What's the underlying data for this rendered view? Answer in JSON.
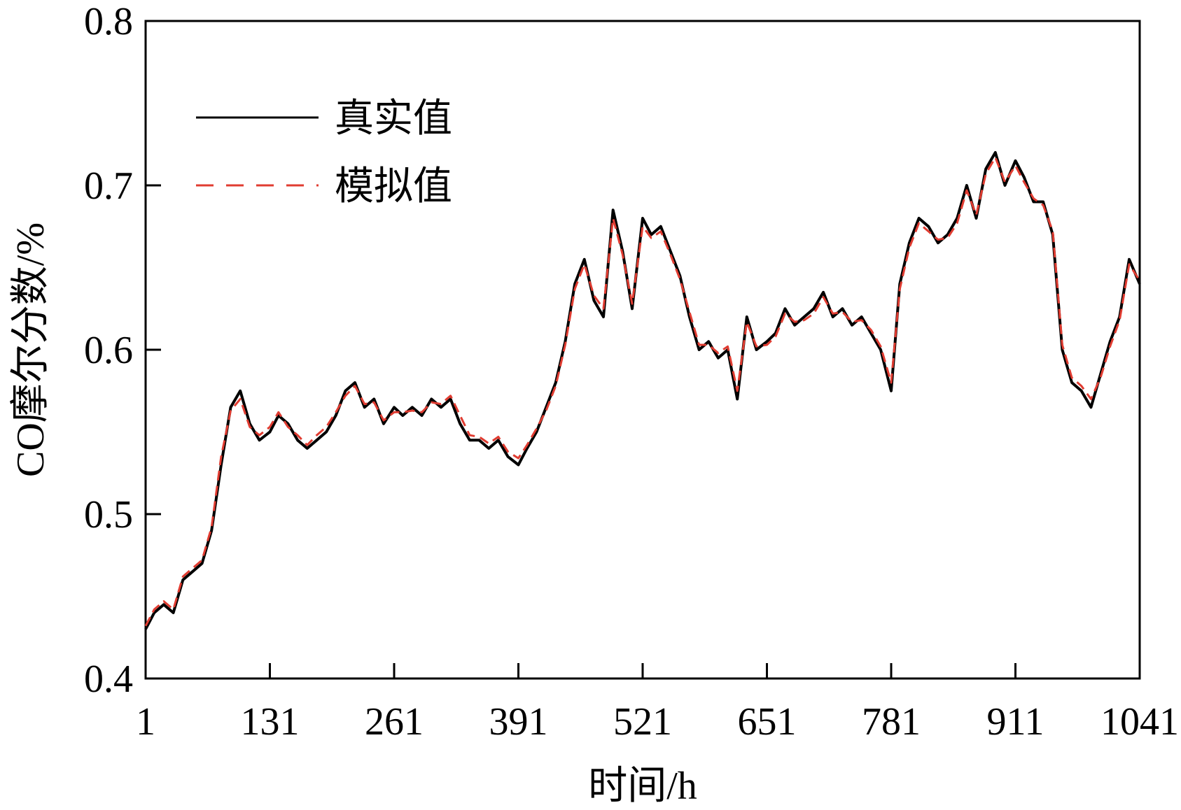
{
  "chart_data": {
    "type": "line",
    "title": "",
    "xlabel": "时间/h",
    "ylabel": "CO摩尔分数/%",
    "xlim": [
      1,
      1041
    ],
    "ylim": [
      0.4,
      0.8
    ],
    "xticks": [
      "1",
      "131",
      "261",
      "391",
      "521",
      "651",
      "781",
      "911",
      "1041"
    ],
    "yticks": [
      "0.4",
      "0.5",
      "0.6",
      "0.7",
      "0.8"
    ],
    "grid": false,
    "legend_position": "top-left",
    "series": [
      {
        "name": "真实值",
        "color": "#000000",
        "style": "solid",
        "x": [
          1,
          10,
          20,
          30,
          40,
          50,
          60,
          70,
          80,
          90,
          100,
          110,
          120,
          131,
          140,
          150,
          160,
          170,
          180,
          190,
          200,
          210,
          220,
          230,
          240,
          250,
          261,
          270,
          280,
          290,
          300,
          310,
          320,
          330,
          340,
          350,
          360,
          370,
          380,
          391,
          400,
          410,
          420,
          430,
          440,
          450,
          460,
          470,
          480,
          490,
          500,
          510,
          521,
          530,
          540,
          550,
          560,
          570,
          580,
          590,
          600,
          610,
          620,
          630,
          640,
          651,
          660,
          670,
          680,
          690,
          700,
          710,
          720,
          730,
          740,
          750,
          760,
          770,
          781,
          790,
          800,
          810,
          820,
          830,
          840,
          850,
          860,
          870,
          880,
          890,
          900,
          911,
          920,
          930,
          940,
          950,
          960,
          970,
          980,
          990,
          1000,
          1010,
          1020,
          1030,
          1041
        ],
        "y": [
          0.43,
          0.44,
          0.445,
          0.44,
          0.46,
          0.465,
          0.47,
          0.49,
          0.53,
          0.565,
          0.575,
          0.555,
          0.545,
          0.55,
          0.56,
          0.555,
          0.545,
          0.54,
          0.545,
          0.55,
          0.56,
          0.575,
          0.58,
          0.565,
          0.57,
          0.555,
          0.565,
          0.56,
          0.565,
          0.56,
          0.57,
          0.565,
          0.57,
          0.555,
          0.545,
          0.545,
          0.54,
          0.545,
          0.535,
          0.53,
          0.54,
          0.55,
          0.565,
          0.58,
          0.605,
          0.64,
          0.655,
          0.63,
          0.62,
          0.685,
          0.66,
          0.625,
          0.68,
          0.67,
          0.675,
          0.66,
          0.645,
          0.62,
          0.6,
          0.605,
          0.595,
          0.6,
          0.57,
          0.62,
          0.6,
          0.605,
          0.61,
          0.625,
          0.615,
          0.62,
          0.625,
          0.635,
          0.62,
          0.625,
          0.615,
          0.62,
          0.61,
          0.6,
          0.575,
          0.64,
          0.665,
          0.68,
          0.675,
          0.665,
          0.67,
          0.68,
          0.7,
          0.68,
          0.71,
          0.72,
          0.7,
          0.715,
          0.705,
          0.69,
          0.69,
          0.67,
          0.6,
          0.58,
          0.575,
          0.565,
          0.585,
          0.605,
          0.62,
          0.655,
          0.64
        ]
      },
      {
        "name": "模拟值",
        "color": "#e03c31",
        "style": "dashed",
        "x": [
          1,
          10,
          20,
          30,
          40,
          50,
          60,
          70,
          80,
          90,
          100,
          110,
          120,
          131,
          140,
          150,
          160,
          170,
          180,
          190,
          200,
          210,
          220,
          230,
          240,
          250,
          261,
          270,
          280,
          290,
          300,
          310,
          320,
          330,
          340,
          350,
          360,
          370,
          380,
          391,
          400,
          410,
          420,
          430,
          440,
          450,
          460,
          470,
          480,
          490,
          500,
          510,
          521,
          530,
          540,
          550,
          560,
          570,
          580,
          590,
          600,
          610,
          620,
          630,
          640,
          651,
          660,
          670,
          680,
          690,
          700,
          710,
          720,
          730,
          740,
          750,
          760,
          770,
          781,
          790,
          800,
          810,
          820,
          830,
          840,
          850,
          860,
          870,
          880,
          890,
          900,
          911,
          920,
          930,
          940,
          950,
          960,
          970,
          980,
          990,
          1000,
          1010,
          1020,
          1030,
          1041
        ],
        "y": [
          0.432,
          0.442,
          0.447,
          0.442,
          0.462,
          0.467,
          0.472,
          0.492,
          0.535,
          0.563,
          0.57,
          0.553,
          0.548,
          0.553,
          0.562,
          0.553,
          0.548,
          0.542,
          0.548,
          0.553,
          0.562,
          0.572,
          0.578,
          0.567,
          0.568,
          0.557,
          0.562,
          0.562,
          0.563,
          0.562,
          0.568,
          0.567,
          0.572,
          0.56,
          0.548,
          0.547,
          0.543,
          0.547,
          0.538,
          0.534,
          0.542,
          0.552,
          0.563,
          0.578,
          0.603,
          0.637,
          0.652,
          0.633,
          0.625,
          0.68,
          0.658,
          0.628,
          0.675,
          0.668,
          0.672,
          0.658,
          0.643,
          0.623,
          0.603,
          0.603,
          0.598,
          0.602,
          0.575,
          0.617,
          0.602,
          0.603,
          0.608,
          0.622,
          0.617,
          0.618,
          0.622,
          0.632,
          0.622,
          0.623,
          0.617,
          0.618,
          0.612,
          0.602,
          0.58,
          0.637,
          0.662,
          0.677,
          0.672,
          0.667,
          0.668,
          0.677,
          0.697,
          0.682,
          0.707,
          0.717,
          0.702,
          0.712,
          0.702,
          0.692,
          0.688,
          0.672,
          0.603,
          0.583,
          0.578,
          0.57,
          0.583,
          0.602,
          0.618,
          0.652,
          0.642
        ]
      }
    ]
  }
}
